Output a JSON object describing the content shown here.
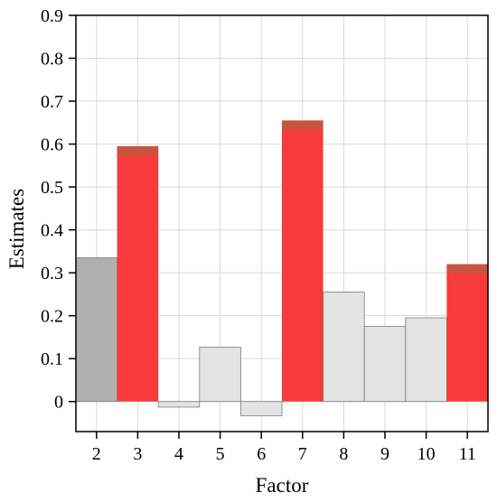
{
  "chart_data": {
    "type": "bar",
    "title": "",
    "xlabel": "Factor",
    "ylabel": "Estimates",
    "categories": [
      "2",
      "3",
      "4",
      "5",
      "6",
      "7",
      "8",
      "9",
      "10",
      "11"
    ],
    "values": [
      0.335,
      0.595,
      -0.013,
      0.127,
      -0.033,
      0.655,
      0.255,
      0.175,
      0.195,
      0.32
    ],
    "highlighted": [
      false,
      true,
      false,
      false,
      false,
      true,
      false,
      false,
      false,
      true
    ],
    "ylim": [
      -0.07,
      0.9
    ],
    "yticks": [
      0,
      0.1,
      0.2,
      0.3,
      0.4,
      0.5,
      0.6,
      0.7,
      0.8,
      0.9
    ],
    "ytick_labels": [
      "0",
      "0.1",
      "0.2",
      "0.3",
      "0.4",
      "0.5",
      "0.6",
      "0.7",
      "0.8",
      "0.9"
    ],
    "grid": true,
    "colors": {
      "highlight": "#f73a3a",
      "highlight_top": "#c8543f",
      "first_bar": "#b0b0b0",
      "other_bar": "#e3e3e3",
      "bar_edge": "#7a7a7a",
      "grid": "#d9d9d9"
    }
  }
}
